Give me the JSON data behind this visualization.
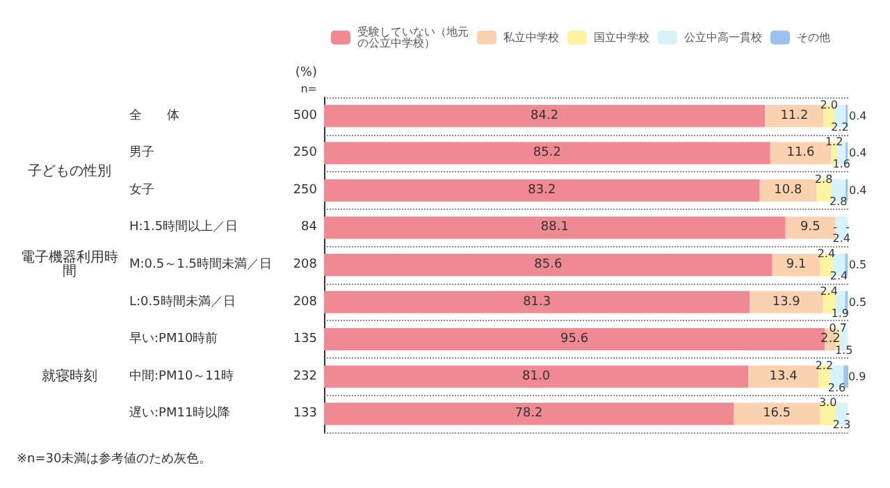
{
  "chart_data": {
    "type": "bar",
    "orientation": "horizontal",
    "stacked": true,
    "grid": "y",
    "legend": "top",
    "tick_labels": "y",
    "categories": [
      "全　　体",
      "男子",
      "女子",
      "H:1.5時間以上／日",
      "M:0.5～1.5時間未満／日",
      "L:0.5時間未満／日",
      "早い:PM10時前",
      "中間:PM10～11時",
      "遅い:PM11時以降"
    ],
    "series": [
      {
        "name": "受験していない（地元の公立中学校）",
        "color": "#f08a92",
        "values": [
          84.2,
          85.2,
          83.2,
          88.1,
          85.6,
          81.3,
          95.6,
          81.0,
          78.2
        ],
        "value_labels": [
          "84.2",
          "85.2",
          "83.2",
          "88.1",
          "85.6",
          "81.3",
          "95.6",
          "81.0",
          "78.2"
        ]
      },
      {
        "name": "私立中学校",
        "color": "#fbd2b0",
        "values": [
          11.2,
          11.6,
          10.8,
          9.5,
          9.1,
          13.9,
          2.2,
          13.4,
          16.5
        ],
        "value_labels": [
          "11.2",
          "11.6",
          "10.8",
          "9.5",
          "9.1",
          "13.9",
          "2.2",
          "13.4",
          "16.5"
        ]
      },
      {
        "name": "国立中学校",
        "color": "#fdf3a0",
        "values": [
          2.0,
          1.2,
          2.8,
          0,
          2.4,
          2.4,
          0.7,
          2.2,
          3.0
        ],
        "value_labels": [
          "2.0",
          "1.2",
          "2.8",
          "-",
          "2.4",
          "2.4",
          "0.7",
          "2.2",
          "3.0"
        ]
      },
      {
        "name": "公立中高一貫校",
        "color": "#d6f3fb",
        "values": [
          2.2,
          1.6,
          2.8,
          2.4,
          2.4,
          1.9,
          1.5,
          2.6,
          2.3
        ],
        "value_labels": [
          "2.2",
          "1.6",
          "2.8",
          "2.4",
          "2.4",
          "1.9",
          "1.5",
          "2.6",
          "2.3"
        ]
      },
      {
        "name": "その他",
        "color": "#9cc2ee",
        "values": [
          0.4,
          0.4,
          0.4,
          0,
          0.5,
          0.5,
          0,
          0.9,
          0
        ],
        "value_labels": [
          "0.4",
          "0.4",
          "0.4",
          "-",
          "0.5",
          "0.5",
          null,
          "0.9",
          "-"
        ]
      }
    ],
    "annotations": [
      "(%)",
      "n=",
      "500",
      "250",
      "250",
      "84",
      "208",
      "208",
      "135",
      "232",
      "133",
      "子どもの性別",
      "電子機器利用時間",
      "就寝時刻",
      "※n=30未満は参考値のため灰色。"
    ]
  }
}
